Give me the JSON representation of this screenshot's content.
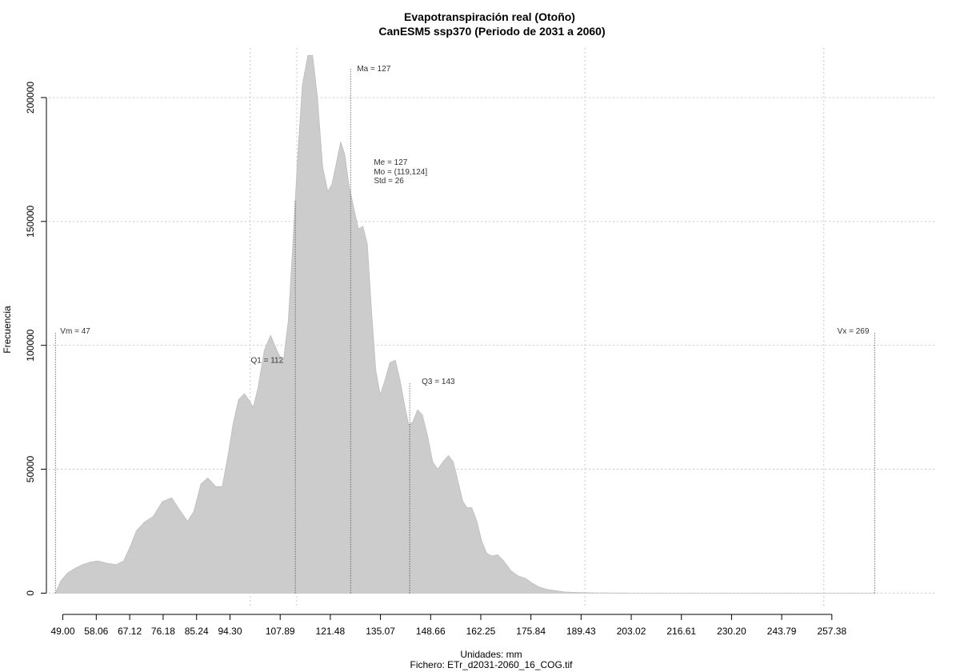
{
  "chart_data": {
    "type": "area",
    "title": "Evapotranspiración real (Otoño)",
    "subtitle": "CanESM5 ssp370 (Periodo de 2031 a 2060)",
    "xlabel": "Unidades: mm",
    "file_label": "Fichero: ETr_d2031-2060_16_COG.tif",
    "ylabel": "Frecuencia",
    "xlim": [
      45.2,
      285.6
    ],
    "ylim": [
      -6000,
      220000
    ],
    "x_tick_values": [
      49.0,
      58.06,
      67.12,
      76.18,
      85.24,
      94.3,
      107.89,
      121.48,
      135.07,
      148.66,
      162.25,
      175.84,
      189.43,
      203.02,
      216.61,
      230.2,
      243.79,
      257.38
    ],
    "x_tick_labels": [
      "49.00",
      "58.06",
      "67.12",
      "76.18",
      "85.24",
      "94.30",
      "107.89",
      "121.48",
      "135.07",
      "148.66",
      "162.25",
      "175.84",
      "189.43",
      "203.02",
      "216.61",
      "230.20",
      "243.79",
      "257.38"
    ],
    "y_tick_values": [
      0,
      50000,
      100000,
      150000,
      200000
    ],
    "y_tick_labels": [
      "0",
      "50000",
      "100000",
      "150000",
      "200000"
    ],
    "x_grid": [
      99.75,
      112.4,
      190.47,
      255.2
    ],
    "y_grid": [
      0,
      50000,
      100000,
      150000,
      200000
    ],
    "grid": true,
    "fill_color": "#cccccc",
    "series": [
      {
        "x": [
          47.0,
          48.5,
          50.2,
          52.3,
          54.4,
          56.5,
          58.6,
          61.0,
          63.4,
          65.5,
          67.3,
          68.9,
          71.0,
          73.5,
          76.0,
          78.5,
          80.9,
          82.8,
          84.5,
          86.4,
          88.3,
          90.4,
          92.2,
          93.7,
          95.1,
          96.6,
          98.2,
          99.4,
          100.6,
          101.9,
          103.6,
          105.3,
          107.0,
          108.7,
          110.1,
          111.3,
          112.6,
          113.9,
          115.4,
          116.7,
          118.0,
          119.4,
          120.8,
          121.9,
          123.3,
          124.3,
          125.4,
          126.5,
          127.9,
          129.1,
          130.3,
          131.5,
          132.6,
          133.8,
          135.0,
          136.3,
          137.6,
          139.1,
          140.5,
          141.6,
          142.7,
          143.8,
          145.1,
          146.4,
          147.9,
          149.2,
          150.6,
          152.0,
          153.5,
          154.8,
          156.1,
          157.4,
          158.5,
          159.8,
          161.2,
          162.5,
          163.9,
          165.3,
          166.8,
          168.5,
          170.4,
          172.3,
          174.3,
          176.2,
          178.0,
          180.2,
          182.4,
          184.9,
          187.8,
          190.4,
          193.4,
          196.7,
          200.2,
          203.5,
          207.0,
          212.0,
          220.0,
          230.0,
          245.0,
          260.0,
          269.0
        ],
        "y": [
          0,
          5000,
          8000,
          10000,
          11500,
          12500,
          13000,
          12000,
          11500,
          13000,
          19000,
          25000,
          28500,
          31000,
          37000,
          38500,
          33000,
          29000,
          33000,
          44000,
          46500,
          43000,
          43000,
          55000,
          68000,
          78000,
          80500,
          78000,
          75000,
          83000,
          98000,
          104000,
          98000,
          93000,
          110000,
          140000,
          175000,
          205000,
          217000,
          217000,
          200000,
          172000,
          162000,
          165000,
          175000,
          182000,
          177000,
          165000,
          155000,
          147000,
          148000,
          141000,
          115000,
          90000,
          80000,
          86000,
          93000,
          94000,
          85000,
          76000,
          68000,
          69000,
          74000,
          72000,
          63000,
          53000,
          50000,
          53000,
          55500,
          53000,
          45000,
          37000,
          34500,
          34500,
          29000,
          21000,
          16000,
          15000,
          15500,
          13000,
          9000,
          7000,
          6000,
          4000,
          2500,
          1500,
          1000,
          500,
          300,
          200,
          100,
          60,
          30,
          10,
          0,
          0,
          0,
          0,
          0,
          0,
          0
        ]
      }
    ],
    "annotations": [
      {
        "label": "Ma = 127",
        "x": 127,
        "y_top": 212000
      },
      {
        "label": "Me = 127",
        "x": 127
      },
      {
        "label": "Mo = (119,124]",
        "x": 127
      },
      {
        "label": "Std = 26",
        "x": 127
      },
      {
        "label": "Q1 = 112",
        "x": 112,
        "y_top": 93000
      },
      {
        "label": "Q3 = 143",
        "x": 143,
        "y_top": 85000
      },
      {
        "label": "Vm = 47",
        "x": 47,
        "y_top": 105000
      },
      {
        "label": "Vx = 269",
        "x": 269,
        "y_top": 105000
      }
    ]
  }
}
